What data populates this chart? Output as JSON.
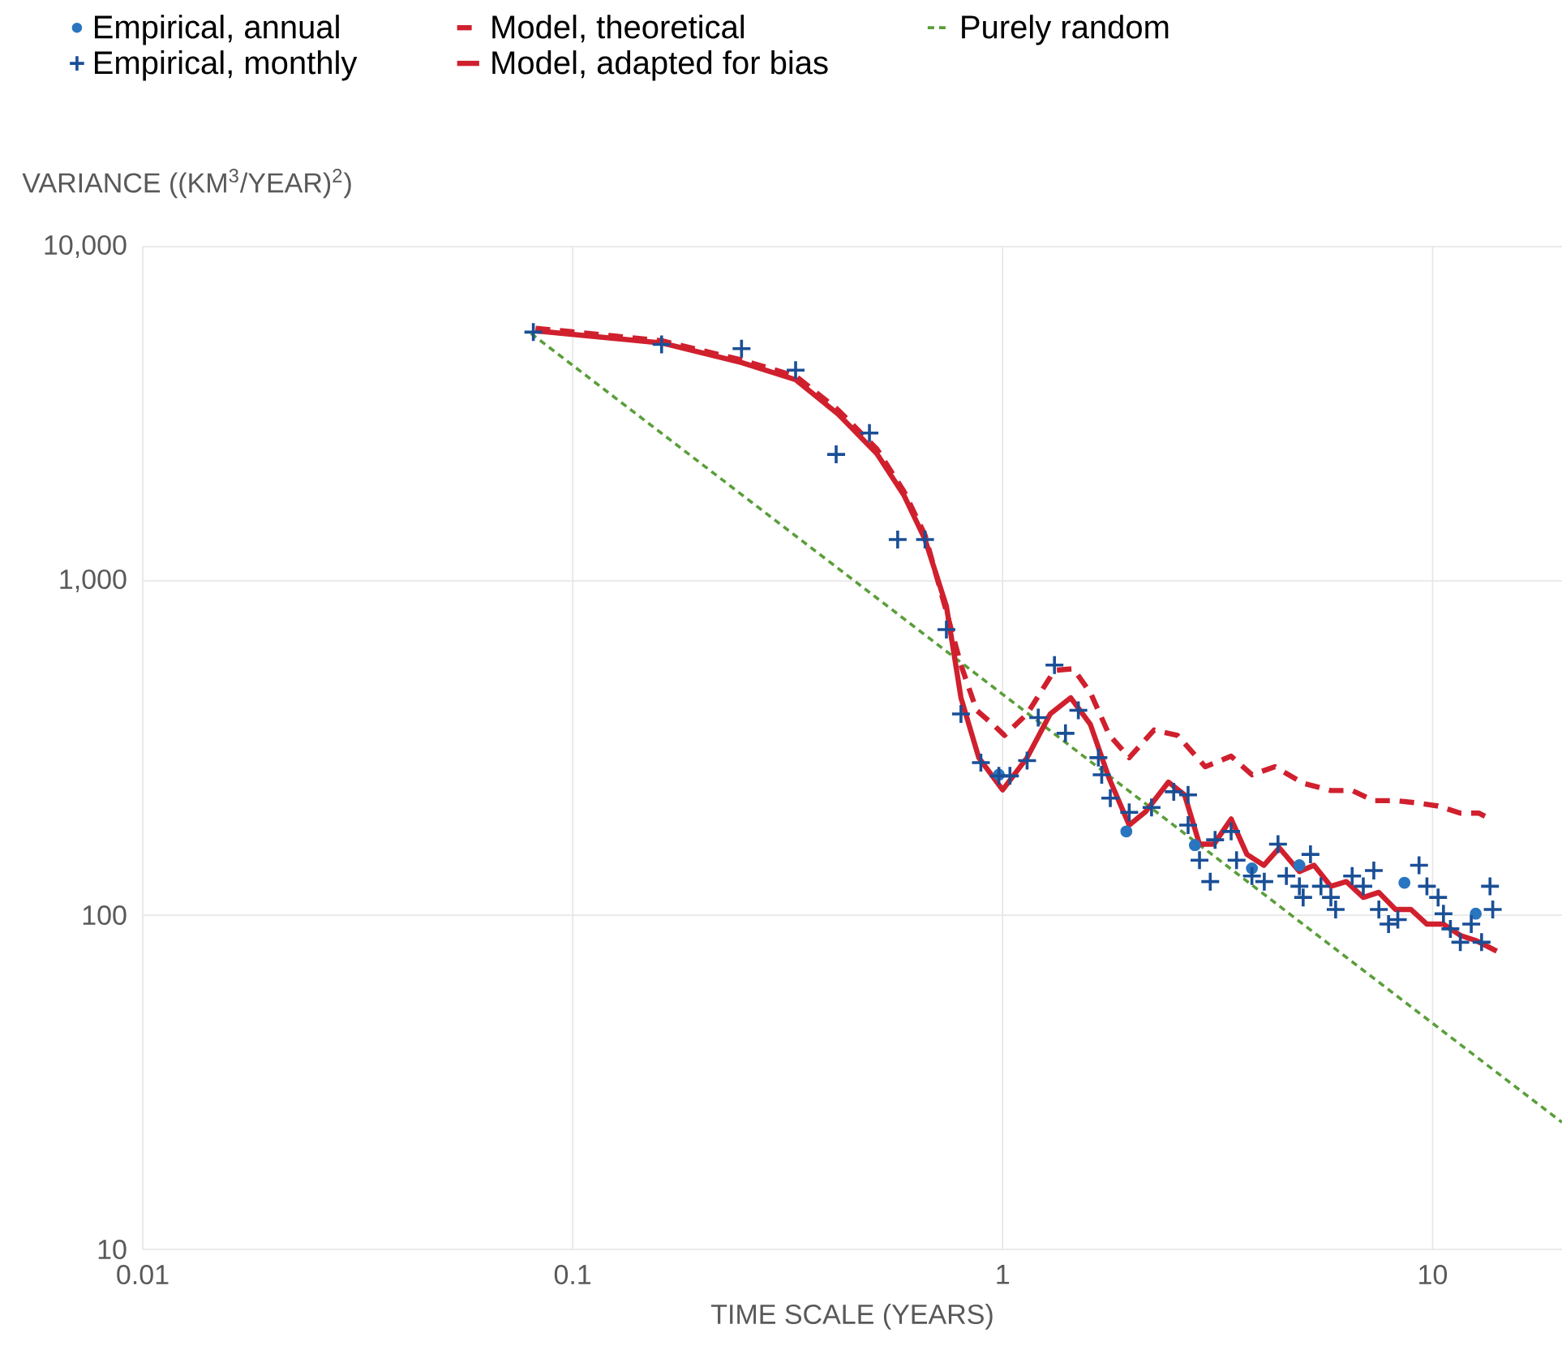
{
  "chart_data": {
    "type": "scatter",
    "xlabel": "TIME SCALE (YEARS)",
    "ylabel": "VARIANCE ((KM$^{3}$/YEAR)$^{2}$)",
    "log": "xy",
    "xlim": [
      0.01,
      20
    ],
    "ylim": [
      10,
      10000
    ],
    "xticks": [
      0.01,
      0.1,
      1,
      10
    ],
    "yticks": [
      10,
      100,
      {
        "value": 1000,
        "label": "1,000"
      },
      {
        "value": 10000,
        "label": "10,000"
      }
    ],
    "grid": true,
    "legend": "top",
    "series": [
      {
        "name": "Empirical, annual",
        "marker": "circle",
        "color": "#2a75c0",
        "x": [
          0.98,
          1.94,
          2.8,
          3.8,
          4.9,
          8.6,
          12.6
        ],
        "values": [
          263,
          178,
          162,
          138,
          141,
          125,
          101
        ]
      },
      {
        "name": "Model, theoretical",
        "type": "line",
        "marker": "none",
        "line_style": "dashed",
        "color": "#d0202e",
        "x": [
          0.082,
          0.161,
          0.247,
          0.33,
          0.415,
          0.51,
          0.59,
          0.66,
          0.74,
          0.8,
          0.87,
          0.95,
          1.01,
          1.14,
          1.32,
          1.46,
          1.6,
          1.77,
          1.97,
          2.25,
          2.55,
          2.96,
          3.4,
          3.8,
          4.3,
          5.0,
          5.8,
          6.5,
          7.3,
          8.2,
          9.1,
          10.3,
          11.6,
          12.8,
          13.5
        ],
        "values": [
          5700,
          5230,
          4580,
          4100,
          3240,
          2480,
          1850,
          1370,
          810,
          560,
          410,
          372,
          345,
          400,
          540,
          546,
          463,
          346,
          296,
          358,
          345,
          278,
          299,
          263,
          278,
          248,
          236,
          236,
          220,
          220,
          217,
          212,
          202,
          202,
          195
        ]
      },
      {
        "name": "Purely random",
        "type": "line",
        "marker": "none",
        "line_style": "dashed",
        "color": "#5a9e3a",
        "x": [
          0.08,
          20
        ],
        "values": [
          5500,
          24
        ]
      },
      {
        "name": "Empirical, monthly",
        "marker": "cross",
        "color": "#1a4f96",
        "x": [
          0.081,
          0.161,
          0.247,
          0.33,
          0.41,
          0.49,
          0.57,
          0.66,
          0.74,
          0.8,
          0.89,
          0.98,
          1.04,
          1.14,
          1.21,
          1.32,
          1.4,
          1.5,
          1.67,
          1.7,
          1.78,
          1.97,
          2.22,
          2.5,
          2.7,
          2.7,
          2.87,
          3.04,
          3.12,
          3.4,
          3.5,
          3.8,
          4.06,
          4.37,
          4.57,
          4.9,
          5.0,
          5.2,
          5.5,
          5.8,
          5.95,
          6.5,
          6.9,
          7.3,
          7.5,
          7.9,
          8.3,
          9.3,
          9.7,
          10.3,
          10.6,
          11.0,
          11.6,
          12.3,
          13.0,
          13.6,
          13.8
        ],
        "values": [
          5550,
          5100,
          4950,
          4270,
          2390,
          2770,
          1330,
          1330,
          715,
          400,
          286,
          261,
          261,
          290,
          390,
          560,
          350,
          410,
          296,
          263,
          224,
          203,
          210,
          234,
          229,
          186,
          146,
          126,
          168,
          178,
          146,
          131,
          126,
          163,
          131,
          122,
          113,
          152,
          122,
          113,
          104,
          131,
          122,
          136,
          104,
          94,
          97,
          141,
          122,
          113,
          101,
          91,
          83,
          94,
          83,
          122,
          104
        ]
      },
      {
        "name": "Model, adapted for bias",
        "type": "line",
        "marker": "none",
        "line_style": "solid",
        "color": "#d0202e",
        "x": [
          0.082,
          0.161,
          0.247,
          0.33,
          0.415,
          0.51,
          0.59,
          0.66,
          0.74,
          0.8,
          0.88,
          1.0,
          1.14,
          1.29,
          1.44,
          1.6,
          1.77,
          1.97,
          2.15,
          2.43,
          2.65,
          2.87,
          3.1,
          3.4,
          3.7,
          4.05,
          4.4,
          4.9,
          5.3,
          5.8,
          6.3,
          6.9,
          7.5,
          8.2,
          8.9,
          9.7,
          10.6,
          11.6,
          12.6,
          14.1
        ],
        "values": [
          5600,
          5150,
          4500,
          4000,
          3150,
          2400,
          1800,
          1330,
          840,
          447,
          296,
          237,
          296,
          400,
          447,
          372,
          256,
          186,
          204,
          250,
          229,
          163,
          163,
          194,
          152,
          141,
          159,
          135,
          141,
          122,
          126,
          113,
          117,
          104,
          104,
          94,
          94,
          87,
          84,
          78
        ]
      }
    ]
  }
}
